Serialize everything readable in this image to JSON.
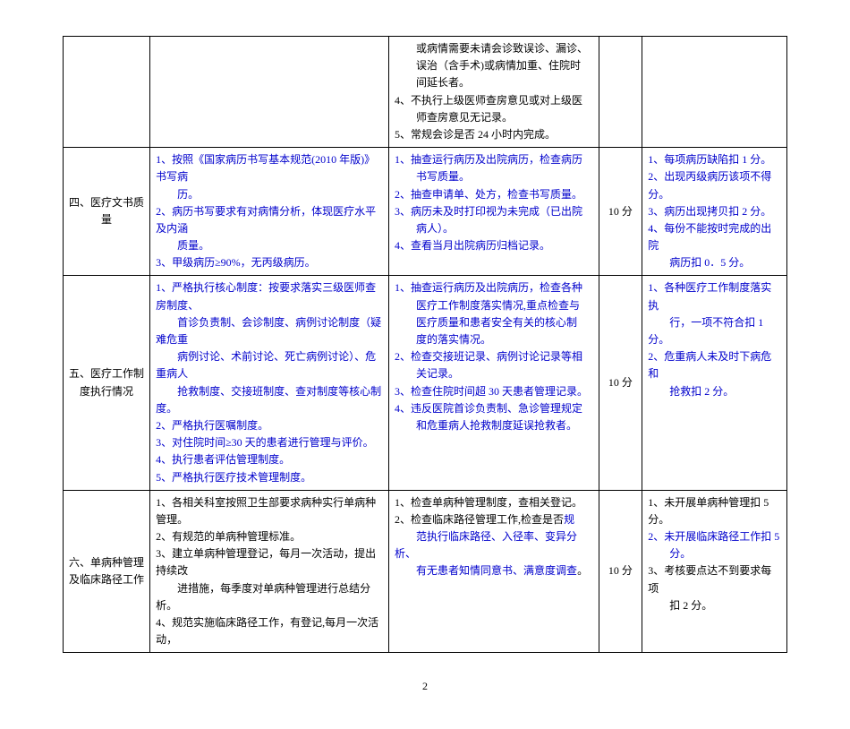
{
  "page_number": "2",
  "colors": {
    "text": "#000000",
    "highlight": "#0000cc",
    "border": "#000000"
  },
  "col_widths_pct": [
    12,
    33,
    29,
    6,
    20
  ],
  "rows": [
    {
      "label": "",
      "col2_lines": [],
      "col3_lines": [
        {
          "t": "　　或病情需要未请会诊致误诊、漏诊、",
          "c": "black"
        },
        {
          "t": "　　误治（含手术)或病情加重、住院时",
          "c": "black"
        },
        {
          "t": "　　间延长者。",
          "c": "black"
        },
        {
          "t": "4、不执行上级医师查房意见或对上级医",
          "c": "black"
        },
        {
          "t": "　　师查房意见无记录。",
          "c": "black"
        },
        {
          "t": "5、常规会诊是否 24 小时内完成。",
          "c": "black"
        }
      ],
      "score": "",
      "col5_lines": []
    },
    {
      "label": "四、医疗文书质量",
      "col2_lines": [
        {
          "t": "1、按照《国家病历书写基本规范(2010 年版)》书写病",
          "c": "blue"
        },
        {
          "t": "　　历。",
          "c": "blue"
        },
        {
          "t": "2、病历书写要求有对病情分析，体现医疗水平及内涵",
          "c": "blue"
        },
        {
          "t": "　　质量。",
          "c": "blue"
        },
        {
          "t": "3、甲级病历≥90%，无丙级病历。",
          "c": "blue"
        }
      ],
      "col3_lines": [
        {
          "t": "1、抽查运行病历及出院病历，检查病历",
          "c": "blue"
        },
        {
          "t": "　　书写质量。",
          "c": "blue"
        },
        {
          "t": "2、抽查申请单、处方，检查书写质量。",
          "c": "blue"
        },
        {
          "t": "3、病历未及时打印视为未完成（已出院",
          "c": "blue"
        },
        {
          "t": "　　病人）。",
          "c": "blue"
        },
        {
          "t": "4、查看当月出院病历归档记录。",
          "c": "blue"
        }
      ],
      "score": "10 分",
      "col5_lines": [
        {
          "t": "1、每项病历缺陷扣 1 分。",
          "c": "blue"
        },
        {
          "t": "2、出现丙级病历该项不得分。",
          "c": "blue"
        },
        {
          "t": "3、病历出现拷贝扣 2 分。",
          "c": "blue"
        },
        {
          "t": "4、每份不能按时完成的出院",
          "c": "blue"
        },
        {
          "t": "　　病历扣 0．5 分。",
          "c": "blue"
        }
      ]
    },
    {
      "label": "五、医疗工作制度执行情况",
      "col2_lines": [
        {
          "t": "1、严格执行核心制度：按要求落实三级医师查房制度、",
          "c": "blue"
        },
        {
          "t": "　　首诊负责制、会诊制度、病例讨论制度（疑难危重",
          "c": "blue"
        },
        {
          "t": "　　病例讨论、术前讨论、死亡病例讨论）、危重病人",
          "c": "blue"
        },
        {
          "t": "　　抢救制度、交接班制度、查对制度等核心制度。",
          "c": "blue"
        },
        {
          "t": "2、严格执行医嘱制度。",
          "c": "blue"
        },
        {
          "t": "3、对住院时间≥30 天的患者进行管理与评价。",
          "c": "blue"
        },
        {
          "t": "4、执行患者评估管理制度。",
          "c": "blue"
        },
        {
          "t": "5、严格执行医疗技术管理制度。",
          "c": "blue"
        }
      ],
      "col3_lines": [
        {
          "t": "1、抽查运行病历及出院病历，检查各种",
          "c": "blue"
        },
        {
          "t": "　　医疗工作制度落实情况,重点检查与",
          "c": "blue"
        },
        {
          "t": "　　医疗质量和患者安全有关的核心制",
          "c": "blue"
        },
        {
          "t": "　　度的落实情况。",
          "c": "blue"
        },
        {
          "t": "2、检查交接班记录、病例讨论记录等相",
          "c": "blue"
        },
        {
          "t": "　　关记录。",
          "c": "blue"
        },
        {
          "t": "3、检查住院时间超 30 天患者管理记录。",
          "c": "blue"
        },
        {
          "t": "4、违反医院首诊负责制、急诊管理规定",
          "c": "blue"
        },
        {
          "t": "　　和危重病人抢救制度延误抢救者。",
          "c": "blue"
        }
      ],
      "score": "10 分",
      "col5_lines": [
        {
          "t": "1、各种医疗工作制度落实执",
          "c": "blue"
        },
        {
          "t": "　　行，一项不符合扣 1 分。",
          "c": "blue"
        },
        {
          "t": "2、危重病人未及时下病危和",
          "c": "blue"
        },
        {
          "t": "　　抢救扣 2 分。",
          "c": "blue"
        }
      ]
    },
    {
      "label": "六、单病种管理及临床路径工作",
      "col2_lines": [
        {
          "t": "1、各相关科室按照卫生部要求病种实行单病种管理。",
          "c": "black"
        },
        {
          "t": "2、有规范的单病种管理标准。",
          "c": "black"
        },
        {
          "t": "3、建立单病种管理登记，每月一次活动，提出持续改",
          "c": "black"
        },
        {
          "t": "　　进措施，每季度对单病种管理进行总结分析。",
          "c": "black"
        },
        {
          "t": "4、规范实施临床路径工作，有登记,每月一次活动，",
          "c": "black"
        }
      ],
      "col3_lines": [
        {
          "t": "1、检查单病种管理制度，查相关登记。",
          "c": "black"
        },
        {
          "t": "2、检查临床路径管理工作,检查是否",
          "c": "black",
          "spanMix": [
            {
              "txt": "规",
              "c": "blue"
            }
          ]
        },
        {
          "t": "　　范执行临床路径、入径率、变异分析、",
          "c": "blue"
        },
        {
          "t": "　　有无患者知情同意书、满意度调查",
          "c": "blue",
          "tail": "。",
          "tailc": "black"
        }
      ],
      "score": "10 分",
      "col5_lines": [
        {
          "t": "1、未开展单病种管理扣 5 分。",
          "c": "black"
        },
        {
          "t": "2、未开展临床路径工作扣 5",
          "c": "blue"
        },
        {
          "t": "　　分。",
          "c": "blue"
        },
        {
          "t": "3、考核要点达不到要求每项",
          "c": "black"
        },
        {
          "t": "　　扣 2 分。",
          "c": "black"
        }
      ]
    }
  ]
}
